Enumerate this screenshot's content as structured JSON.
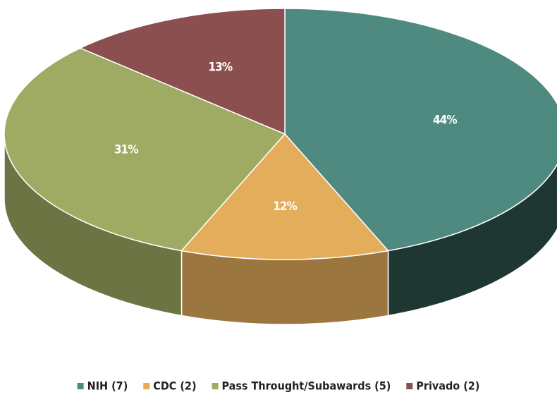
{
  "chart_data": {
    "type": "pie",
    "categories": [
      "NIH (7)",
      "CDC (2)",
      "Pass Throught/Subawards (5)",
      "Privado (2)"
    ],
    "values": [
      44,
      12,
      31,
      13
    ],
    "value_labels": [
      "44%",
      "12%",
      "31%",
      "13%"
    ],
    "colors": [
      "#4e8a80",
      "#e4ad5c",
      "#9fab62",
      "#8b4f4f"
    ],
    "legend": "bottom"
  }
}
